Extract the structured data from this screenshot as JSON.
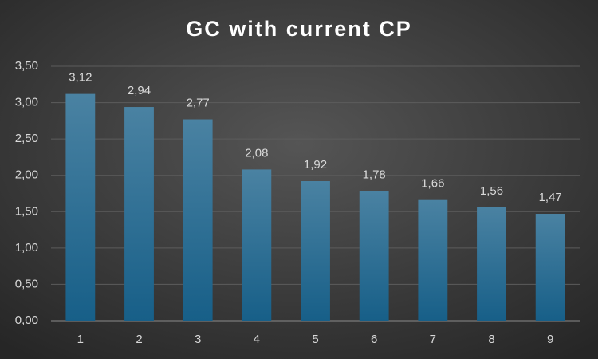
{
  "chart_data": {
    "type": "bar",
    "title": "GC with current CP",
    "categories": [
      "1",
      "2",
      "3",
      "4",
      "5",
      "6",
      "7",
      "8",
      "9"
    ],
    "values": [
      3.12,
      2.94,
      2.77,
      2.08,
      1.92,
      1.78,
      1.66,
      1.56,
      1.47
    ],
    "value_labels": [
      "3,12",
      "2,94",
      "2,77",
      "2,08",
      "1,92",
      "1,78",
      "1,66",
      "1,56",
      "1,47"
    ],
    "color": "#175f88",
    "ylim": [
      0,
      3.5
    ],
    "yticks": [
      {
        "value": 0,
        "label": "0,00"
      },
      {
        "value": 0.5,
        "label": "0,50"
      },
      {
        "value": 1,
        "label": "1,00"
      },
      {
        "value": 1.5,
        "label": "1,50"
      },
      {
        "value": 2,
        "label": "2,00"
      },
      {
        "value": 2.5,
        "label": "2,50"
      },
      {
        "value": 3,
        "label": "3,00"
      },
      {
        "value": 3.5,
        "label": "3,50"
      }
    ],
    "grid": true
  }
}
